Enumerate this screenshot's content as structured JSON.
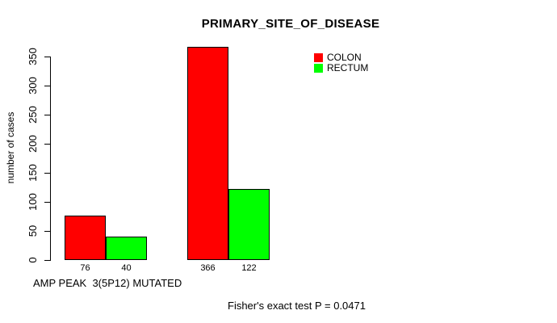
{
  "title": "PRIMARY_SITE_OF_DISEASE",
  "footer_annotation": "Fisher's exact test P = 0.0471",
  "chart_data": {
    "type": "bar",
    "title": "PRIMARY_SITE_OF_DISEASE",
    "categories": [
      "AMP PEAK  3(5P12) MUTATED",
      ""
    ],
    "series": [
      {
        "name": "COLON",
        "color": "#ff0000",
        "values": [
          76,
          366
        ]
      },
      {
        "name": "RECTUM",
        "color": "#00ff00",
        "values": [
          40,
          122
        ]
      }
    ],
    "bar_value_labels": [
      [
        76,
        40
      ],
      [
        366,
        122
      ]
    ],
    "xlabel": "AMP PEAK  3(5P12) MUTATED",
    "ylabel": "number of cases",
    "ylim": [
      0,
      350
    ],
    "yticks": [
      0,
      50,
      100,
      150,
      200,
      250,
      300,
      350
    ],
    "grid": false,
    "legend_position": "top-right",
    "annotation": "Fisher's exact test P = 0.0471",
    "bar_fill_colors": {
      "colon": "#ff0000",
      "rectum": "#00ff00"
    },
    "bar_border_color": "#000000"
  }
}
